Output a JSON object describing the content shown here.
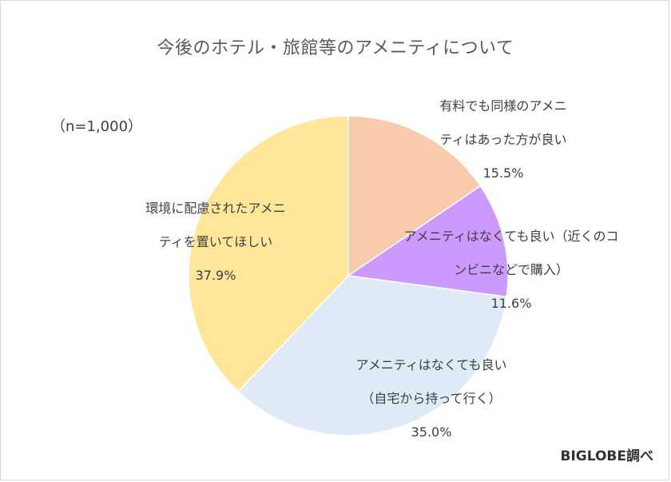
{
  "chart_data": {
    "type": "pie",
    "title": "今後のホテル・旅館等のアメニティについて",
    "sample_note": "（n=1,000）",
    "source": "BIGLOBE調べ",
    "slices": [
      {
        "label_lines": [
          "有料でも同様のアメニ",
          "ティはあった方が良い"
        ],
        "value": 15.5,
        "percent_label": "15.5%",
        "color": "#F8CBAD"
      },
      {
        "label_lines": [
          "アメニティはなくても良い（近くのコ",
          "ンビニなどで購入）"
        ],
        "value": 11.6,
        "percent_label": "11.6%",
        "color": "#CC99FF"
      },
      {
        "label_lines": [
          "アメニティはなくても良い",
          "（自宅から持って行く）"
        ],
        "value": 35.0,
        "percent_label": "35.0%",
        "color": "#DEEBF7"
      },
      {
        "label_lines": [
          "環境に配慮されたアメニ",
          "ティを置いてほしい"
        ],
        "value": 37.9,
        "percent_label": "37.9%",
        "color": "#FFE699"
      }
    ]
  }
}
